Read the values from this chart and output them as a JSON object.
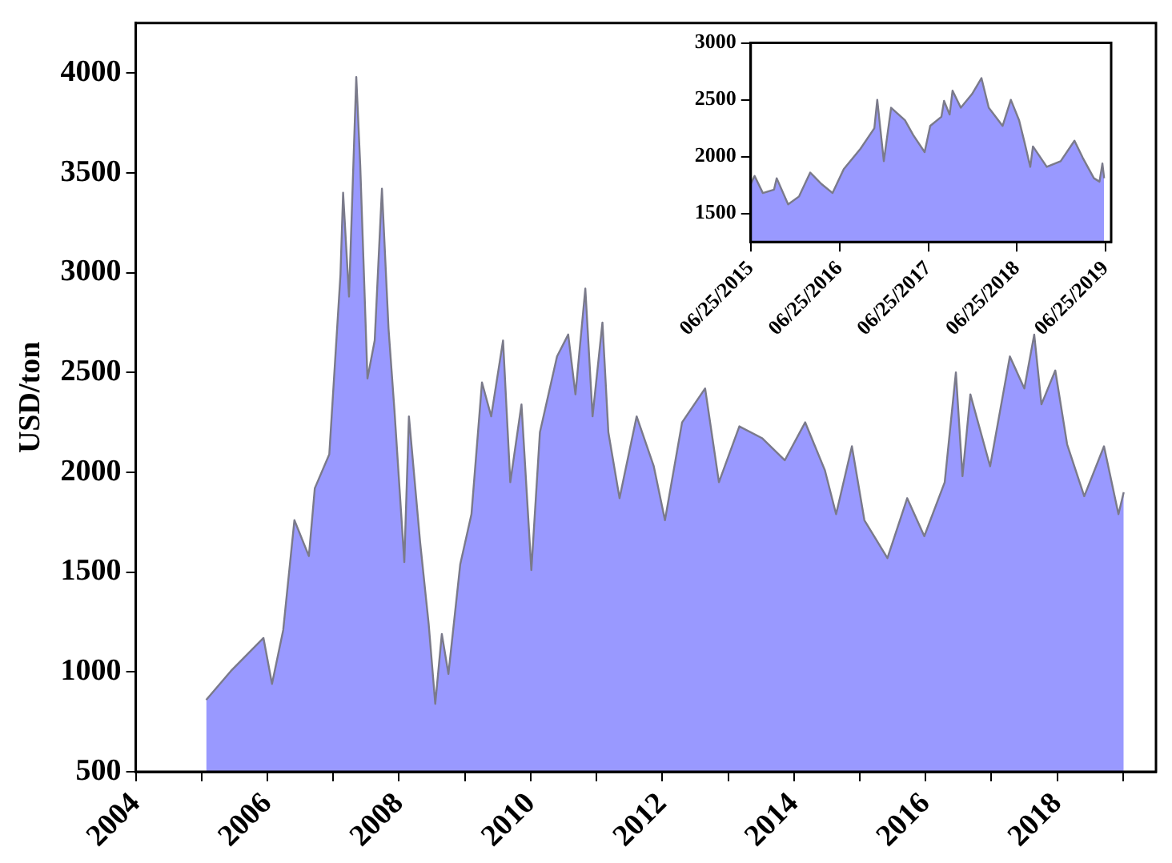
{
  "chart_data": [
    {
      "type": "area",
      "ylabel": "USD/ton",
      "xlim": [
        2004,
        2019.5
      ],
      "ylim": [
        500,
        4250
      ],
      "xticks": [
        2004,
        {
          "value": 2005,
          "label": null
        },
        2006,
        {
          "value": 2007,
          "label": null
        },
        2008,
        {
          "value": 2009,
          "label": null
        },
        2010,
        {
          "value": 2011,
          "label": null
        },
        2012,
        {
          "value": 2013,
          "label": null
        },
        2014,
        {
          "value": 2015,
          "label": null
        },
        2016,
        {
          "value": 2017,
          "label": null
        },
        2018,
        {
          "value": 2019,
          "label": null
        }
      ],
      "yticks": [
        500,
        1000,
        1500,
        2000,
        2500,
        3000,
        3500,
        4000
      ],
      "x": [
        2005.07,
        2005.46,
        2005.94,
        2006.07,
        2006.24,
        2006.41,
        2006.63,
        2006.72,
        2006.94,
        2007.11,
        2007.15,
        2007.24,
        2007.35,
        2007.41,
        2007.52,
        2007.63,
        2007.74,
        2007.84,
        2007.93,
        2008.08,
        2008.15,
        2008.32,
        2008.45,
        2008.55,
        2008.65,
        2008.75,
        2008.93,
        2009.1,
        2009.26,
        2009.4,
        2009.58,
        2009.69,
        2009.86,
        2010.01,
        2010.14,
        2010.4,
        2010.57,
        2010.68,
        2010.83,
        2010.94,
        2011.09,
        2011.18,
        2011.35,
        2011.61,
        2011.87,
        2012.04,
        2012.3,
        2012.65,
        2012.86,
        2013.17,
        2013.52,
        2013.86,
        2014.17,
        2014.47,
        2014.64,
        2014.88,
        2015.07,
        2015.42,
        2015.72,
        2015.98,
        2016.29,
        2016.46,
        2016.56,
        2016.68,
        2016.98,
        2017.28,
        2017.5,
        2017.65,
        2017.76,
        2017.97,
        2018.15,
        2018.41,
        2018.71,
        2018.93,
        2019.01
      ],
      "series": [
        {
          "color": "#9999ff",
          "values": [
            860,
            1010,
            1170,
            940,
            1210,
            1760,
            1580,
            1920,
            2090,
            2990,
            3400,
            2880,
            3980,
            3540,
            2470,
            2660,
            3420,
            2720,
            2310,
            1550,
            2280,
            1650,
            1240,
            840,
            1190,
            990,
            1540,
            1790,
            2450,
            2280,
            2660,
            1950,
            2340,
            1510,
            2200,
            2580,
            2690,
            2390,
            2920,
            2280,
            2750,
            2200,
            1870,
            2280,
            2030,
            1760,
            2250,
            2420,
            1950,
            2230,
            2170,
            2060,
            2250,
            2010,
            1790,
            2130,
            1760,
            1570,
            1870,
            1680,
            1950,
            2500,
            1980,
            2390,
            2030,
            2580,
            2420,
            2690,
            2340,
            2510,
            2140,
            1880,
            2130,
            1790,
            1900
          ]
        }
      ]
    },
    {
      "type": "area",
      "xlim": [
        "2015-06-25",
        "2019-07-18"
      ],
      "ylim": [
        1250,
        3000
      ],
      "xticks": [
        {
          "value": "2015-06-25",
          "label": "06/25/2015"
        },
        {
          "value": "2016-06-25",
          "label": "06/25/2016"
        },
        {
          "value": "2017-06-25",
          "label": "06/25/2017"
        },
        {
          "value": "2018-06-25",
          "label": "06/25/2018"
        },
        {
          "value": "2019-06-25",
          "label": "06/25/2019"
        }
      ],
      "yticks": [
        1500,
        2000,
        2500,
        3000
      ],
      "x": [
        "2015-06-25",
        "2015-07-11",
        "2015-08-14",
        "2015-09-29",
        "2015-10-10",
        "2015-11-26",
        "2016-01-10",
        "2016-02-25",
        "2016-04-11",
        "2016-05-27",
        "2016-07-12",
        "2016-09-19",
        "2016-11-15",
        "2016-11-27",
        "2016-12-24",
        "2017-01-23",
        "2017-03-21",
        "2017-04-24",
        "2017-06-10",
        "2017-07-03",
        "2017-08-18",
        "2017-08-29",
        "2017-09-21",
        "2017-10-03",
        "2017-11-06",
        "2017-12-22",
        "2018-01-30",
        "2018-03-01",
        "2018-04-27",
        "2018-05-31",
        "2018-07-04",
        "2018-07-27",
        "2018-08-19",
        "2018-08-30",
        "2018-10-26",
        "2018-12-22",
        "2019-02-17",
        "2019-03-23",
        "2019-05-08",
        "2019-05-31",
        "2019-06-12",
        "2019-06-19"
      ],
      "series": [
        {
          "color": "#9999ff",
          "values": [
            1760,
            1830,
            1680,
            1710,
            1810,
            1580,
            1650,
            1860,
            1760,
            1680,
            1890,
            2070,
            2250,
            2500,
            1960,
            2430,
            2320,
            2190,
            2040,
            2270,
            2350,
            2490,
            2370,
            2580,
            2430,
            2550,
            2690,
            2430,
            2270,
            2500,
            2320,
            2120,
            1910,
            2090,
            1910,
            1960,
            2140,
            1990,
            1810,
            1780,
            1940,
            1810
          ]
        }
      ]
    }
  ]
}
